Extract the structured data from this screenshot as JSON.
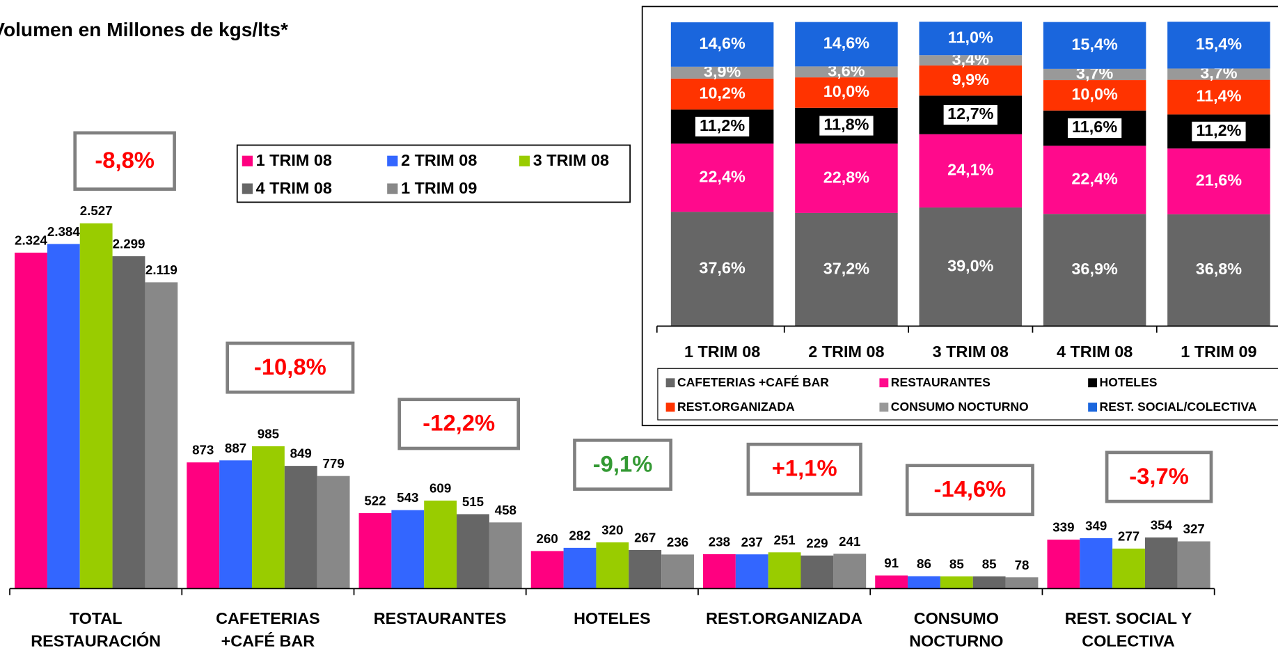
{
  "chart_data": [
    {
      "type": "bar",
      "title": "Volumen en Millones de kgs/lts*",
      "categories": [
        "TOTAL\nRESTAURACIÓN",
        "CAFETERIAS\n+CAFÉ BAR",
        "RESTAURANTES",
        "HOTELES",
        "REST.ORGANIZADA",
        "CONSUMO\nNOCTURNO",
        "REST. SOCIAL Y\nCOLECTIVA"
      ],
      "series": [
        {
          "name": "1 TRIM 08",
          "color": "#ff0080",
          "values": [
            2324,
            873,
            522,
            260,
            238,
            91,
            339
          ],
          "value_labels": [
            "2.324",
            "873",
            "522",
            "260",
            "238",
            "91",
            "339"
          ]
        },
        {
          "name": "2 TRIM 08",
          "color": "#3366ff",
          "values": [
            2384,
            887,
            543,
            282,
            237,
            86,
            349
          ],
          "value_labels": [
            "2.384",
            "887",
            "543",
            "282",
            "237",
            "86",
            "349"
          ]
        },
        {
          "name": "3 TRIM 08",
          "color": "#99cc00",
          "values": [
            2527,
            985,
            609,
            320,
            251,
            85,
            277
          ],
          "value_labels": [
            "2.527",
            "985",
            "609",
            "320",
            "251",
            "85",
            "277"
          ]
        },
        {
          "name": "4 TRIM 08",
          "color": "#666666",
          "values": [
            2299,
            849,
            515,
            267,
            229,
            85,
            354
          ],
          "value_labels": [
            "2.299",
            "849",
            "515",
            "267",
            "229",
            "85",
            "354"
          ]
        },
        {
          "name": "1 TRIM 09",
          "color": "#888888",
          "values": [
            2119,
            779,
            458,
            236,
            241,
            78,
            327
          ],
          "value_labels": [
            "2.119",
            "779",
            "458",
            "236",
            "241",
            "78",
            "327"
          ]
        }
      ],
      "annotations": [
        {
          "text": "-8,8%",
          "color": "#ff0000"
        },
        {
          "text": "-10,8%",
          "color": "#ff0000"
        },
        {
          "text": "-12,2%",
          "color": "#ff0000"
        },
        {
          "text": "-9,1%",
          "color": "#339933"
        },
        {
          "text": "+1,1%",
          "color": "#ff0000"
        },
        {
          "text": "-14,6%",
          "color": "#ff0000"
        },
        {
          "text": "-3,7%",
          "color": "#ff0000"
        }
      ],
      "ylim": [
        0,
        3000
      ]
    },
    {
      "type": "stacked_bar",
      "categories": [
        "1 TRIM 08",
        "2 TRIM 08",
        "3 TRIM 08",
        "4 TRIM 08",
        "1 TRIM 09"
      ],
      "series": [
        {
          "name": "CAFETERIAS +CAFÉ BAR",
          "color": "#666666",
          "values": [
            37.6,
            37.2,
            39.0,
            36.9,
            36.8
          ],
          "value_labels": [
            "37,6%",
            "37,2%",
            "39,0%",
            "36,9%",
            "36,8%"
          ]
        },
        {
          "name": "RESTAURANTES",
          "color": "#ff0a8c",
          "values": [
            22.4,
            22.8,
            24.1,
            22.4,
            21.6
          ],
          "value_labels": [
            "22,4%",
            "22,8%",
            "24,1%",
            "22,4%",
            "21,6%"
          ]
        },
        {
          "name": "HOTELES",
          "color": "#000000",
          "values": [
            11.2,
            11.8,
            12.7,
            11.6,
            11.2
          ],
          "value_labels": [
            "11,2%",
            "11,8%",
            "12,7%",
            "11,6%",
            "11,2%"
          ]
        },
        {
          "name": "REST.ORGANIZADA",
          "color": "#ff3300",
          "values": [
            10.2,
            10.0,
            9.9,
            10.0,
            11.4
          ],
          "value_labels": [
            "10,2%",
            "10,0%",
            "9,9%",
            "10,0%",
            "11,4%"
          ]
        },
        {
          "name": "CONSUMO NOCTURNO",
          "color": "#999999",
          "values": [
            3.9,
            3.6,
            3.4,
            3.7,
            3.7
          ],
          "value_labels": [
            "3,9%",
            "3,6%",
            "3,4%",
            "3,7%",
            "3,7%"
          ]
        },
        {
          "name": "REST. SOCIAL/COLECTIVA",
          "color": "#1a66dd",
          "values": [
            14.6,
            14.6,
            11.0,
            15.4,
            15.4
          ],
          "value_labels": [
            "14,6%",
            "14,6%",
            "11,0%",
            "15,4%",
            "15,4%"
          ]
        }
      ],
      "ylim": [
        0,
        100
      ]
    }
  ]
}
